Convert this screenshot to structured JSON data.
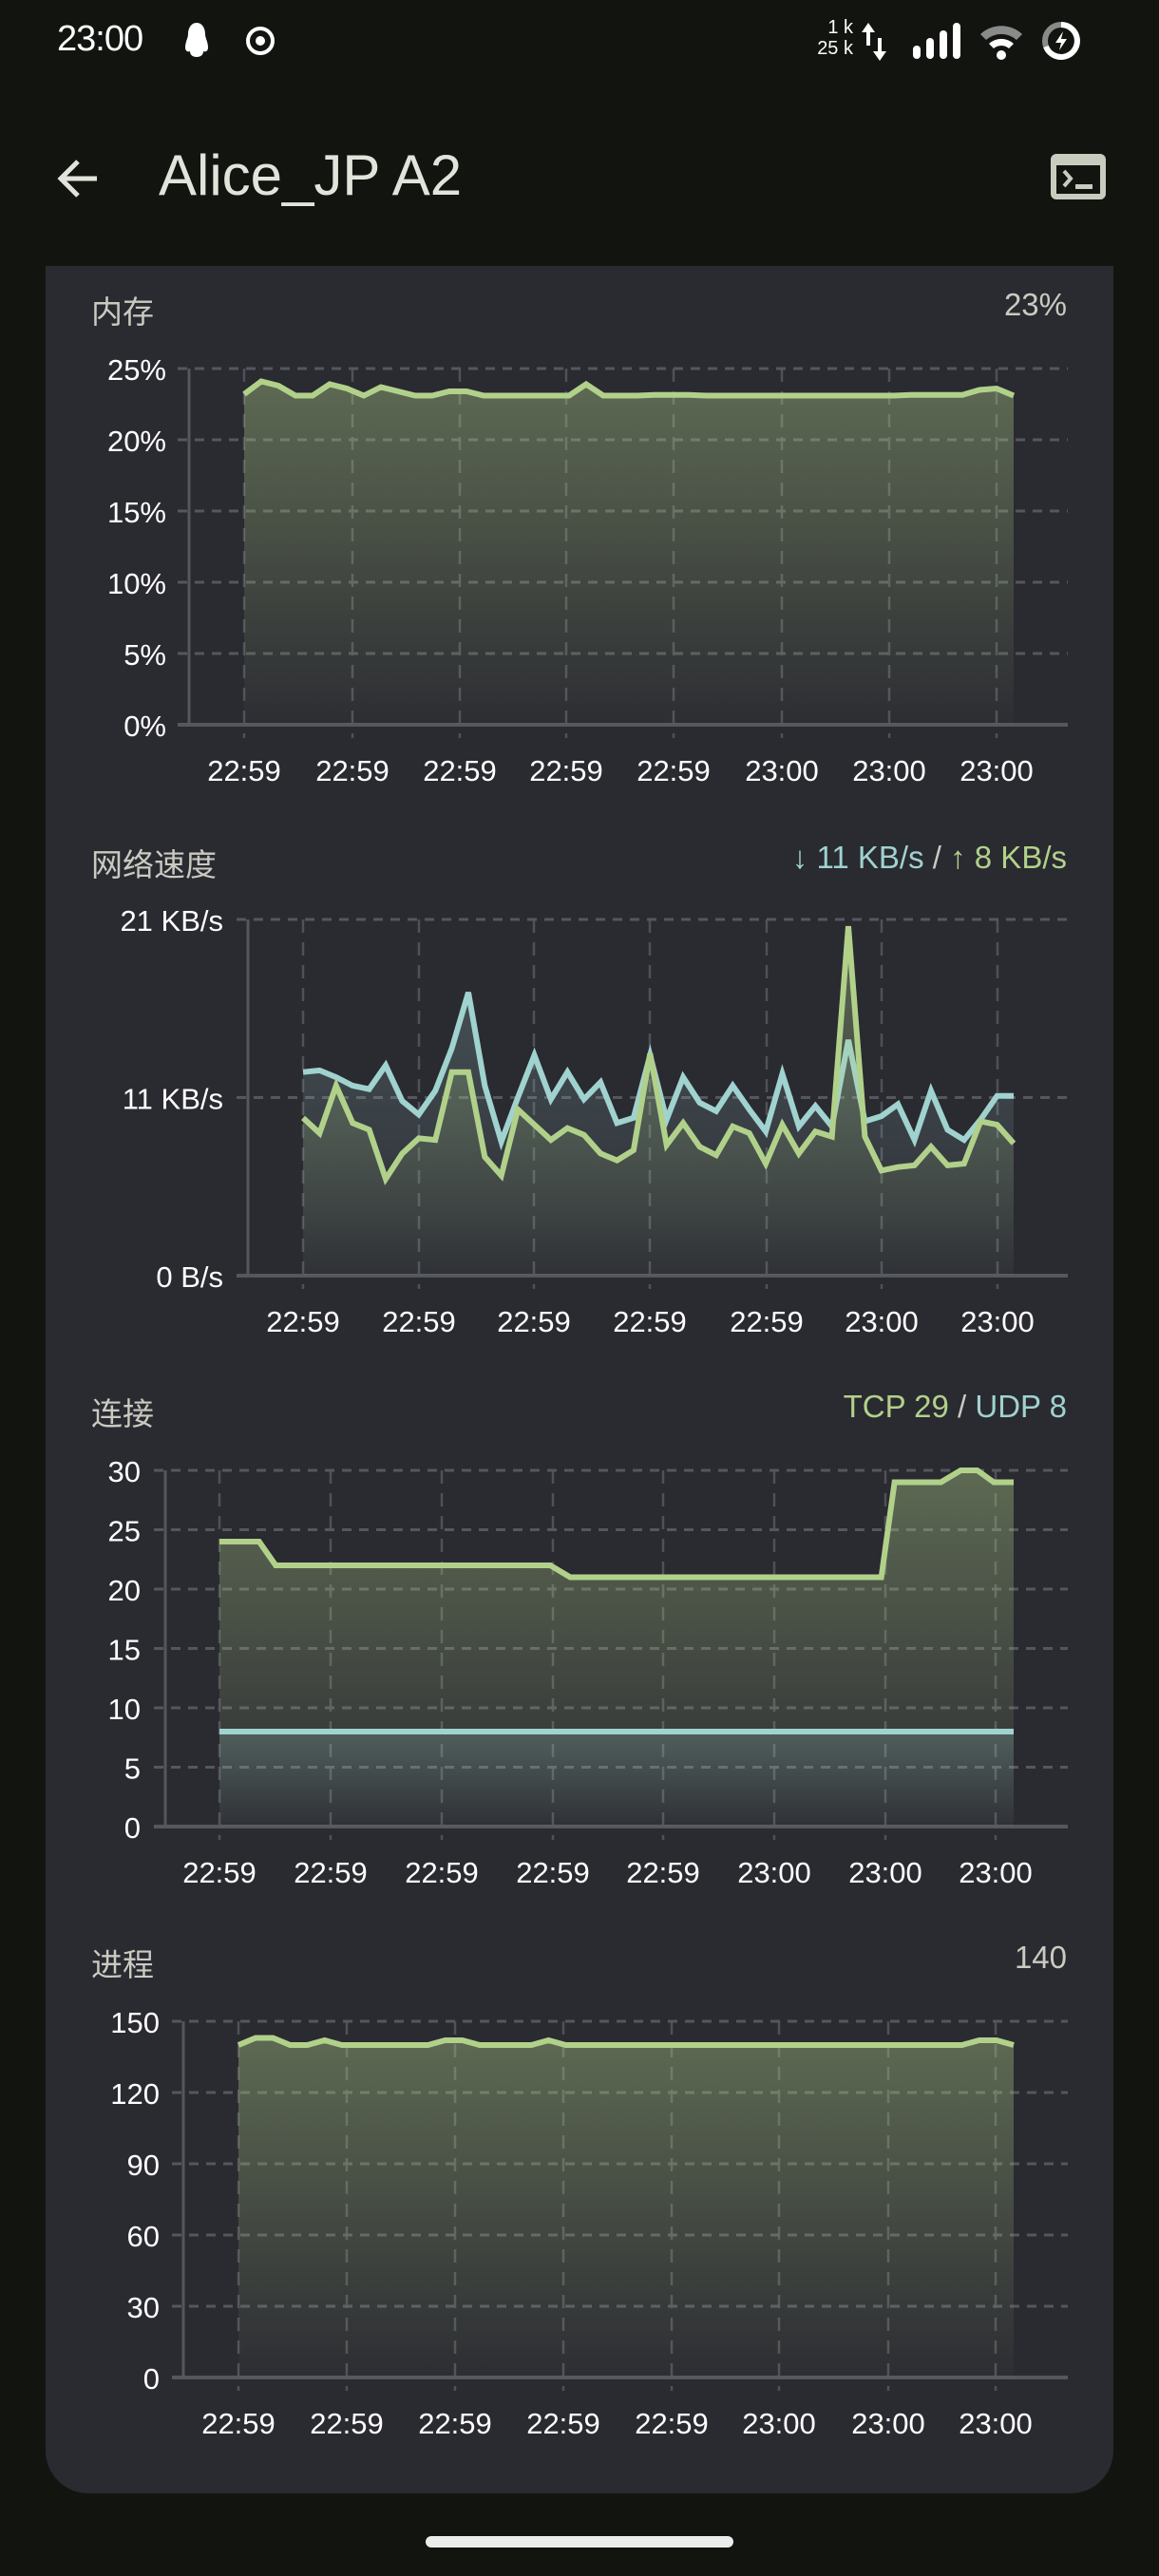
{
  "status_bar": {
    "time": "23:00",
    "notification_icons": [
      "qq-penguin-icon",
      "record-circle-icon"
    ],
    "net_speed_up": "1 k",
    "net_speed_down": "25 k",
    "system_icons": [
      "data-arrows-icon",
      "signal-icon",
      "wifi-icon",
      "battery-charging-icon"
    ]
  },
  "app_bar": {
    "title": "Alice_JP A2",
    "back_icon": "arrow-left-icon",
    "action_icon": "terminal-icon"
  },
  "colors": {
    "background": "#121410",
    "card": "#2a2a31",
    "green": "#b1d18a",
    "cyan": "#a0d2cf",
    "grid": "#54575b",
    "label": "#c9cbc1"
  },
  "sections": {
    "memory": {
      "title": "内存",
      "value": "23%"
    },
    "network": {
      "title": "网络速度",
      "down_arrow": "↓",
      "down_value": "11 KB/s",
      "separator": " / ",
      "up_arrow": "↑",
      "up_value": "8 KB/s"
    },
    "connections": {
      "title": "连接",
      "tcp_label": "TCP 29",
      "separator": " / ",
      "udp_label": "UDP 8"
    },
    "processes": {
      "title": "进程",
      "value": "140"
    }
  },
  "chart_data": [
    {
      "type": "area",
      "title": "内存",
      "ylabel": "",
      "xlabel": "",
      "ylim": [
        0,
        25
      ],
      "yticks": [
        "0%",
        "5%",
        "10%",
        "15%",
        "20%",
        "25%"
      ],
      "ytick_values": [
        0,
        5,
        10,
        15,
        20,
        25
      ],
      "xticks": [
        "22:59",
        "22:59",
        "22:59",
        "22:59",
        "22:59",
        "23:00",
        "23:00",
        "23:00"
      ],
      "grid": true,
      "series": [
        {
          "name": "memory",
          "color": "#b1d18a",
          "values": [
            23.2,
            24.1,
            23.8,
            23.1,
            23.1,
            23.9,
            23.6,
            23.1,
            23.7,
            23.4,
            23.1,
            23.1,
            23.4,
            23.4,
            23.1,
            23.1,
            23.1,
            23.1,
            23.1,
            23.1,
            23.9,
            23.1,
            23.1,
            23.1,
            23.15,
            23.15,
            23.15,
            23.1,
            23.1,
            23.1,
            23.1,
            23.1,
            23.1,
            23.1,
            23.1,
            23.1,
            23.1,
            23.1,
            23.1,
            23.15,
            23.15,
            23.15,
            23.15,
            23.5,
            23.6,
            23.1
          ]
        }
      ]
    },
    {
      "type": "area",
      "title": "网络速度",
      "ylim": [
        0,
        21
      ],
      "yticks": [
        "0 B/s",
        "11 KB/s",
        "21 KB/s"
      ],
      "ytick_values": [
        0,
        10.5,
        21
      ],
      "xticks": [
        "22:59",
        "22:59",
        "22:59",
        "22:59",
        "22:59",
        "23:00",
        "23:00"
      ],
      "grid": true,
      "legend": {
        "position": "top-right"
      },
      "series": [
        {
          "name": "download",
          "color": "#a0d2cf",
          "values": [
            12,
            12.1,
            11.7,
            11.2,
            11.0,
            12.4,
            10.3,
            9.5,
            10.9,
            13.4,
            16.7,
            11.2,
            7.9,
            10.5,
            13.0,
            10.4,
            12.0,
            10.4,
            11.4,
            9.0,
            9.3,
            13.0,
            9.2,
            11.7,
            10.2,
            9.7,
            11.2,
            9.8,
            8.5,
            11.9,
            8.8,
            10.0,
            8.8,
            13.9,
            9.1,
            9.4,
            10.1,
            8.0,
            10.9,
            8.6,
            8.0,
            9.2,
            10.6,
            10.6
          ]
        },
        {
          "name": "upload",
          "color": "#b1d18a",
          "values": [
            9.3,
            8.4,
            11.2,
            9.0,
            8.6,
            5.7,
            7.2,
            8.1,
            8.0,
            12.0,
            12.0,
            7.0,
            5.9,
            9.8,
            8.9,
            8.0,
            8.7,
            8.3,
            7.2,
            6.8,
            7.4,
            13.1,
            7.7,
            9.0,
            7.6,
            7.1,
            8.8,
            8.4,
            6.6,
            8.9,
            7.2,
            8.5,
            8.2,
            20.6,
            8.2,
            6.2,
            6.4,
            6.5,
            7.6,
            6.5,
            6.6,
            9.1,
            8.9,
            7.8
          ]
        }
      ]
    },
    {
      "type": "area",
      "title": "连接",
      "ylim": [
        0,
        30
      ],
      "yticks": [
        "0",
        "5",
        "10",
        "15",
        "20",
        "25",
        "30"
      ],
      "ytick_values": [
        0,
        5,
        10,
        15,
        20,
        25,
        30
      ],
      "xticks": [
        "22:59",
        "22:59",
        "22:59",
        "22:59",
        "22:59",
        "23:00",
        "23:00",
        "23:00"
      ],
      "grid": true,
      "series": [
        {
          "name": "TCP",
          "color": "#b1d18a",
          "x_frac": [
            0,
            0.06,
            0.085,
            0.5,
            0.53,
            0.99,
            1.0,
            1.02,
            1.09,
            1.12,
            1.145,
            1.17,
            1.2
          ],
          "values": [
            24,
            24,
            22,
            22,
            21,
            21,
            21,
            29,
            29,
            30,
            30,
            29,
            29
          ]
        },
        {
          "name": "UDP",
          "color": "#a0d2cf",
          "values": [
            8,
            8,
            8,
            8,
            8,
            8,
            8,
            8,
            8,
            8
          ]
        }
      ]
    },
    {
      "type": "area",
      "title": "进程",
      "ylim": [
        0,
        150
      ],
      "yticks": [
        "0",
        "30",
        "60",
        "90",
        "120",
        "150"
      ],
      "ytick_values": [
        0,
        30,
        60,
        90,
        120,
        150
      ],
      "xticks": [
        "22:59",
        "22:59",
        "22:59",
        "22:59",
        "22:59",
        "23:00",
        "23:00",
        "23:00"
      ],
      "grid": true,
      "series": [
        {
          "name": "processes",
          "color": "#b1d18a",
          "values": [
            140,
            143,
            143,
            140,
            140,
            142,
            140,
            140,
            140,
            140,
            140,
            140,
            142,
            142,
            140,
            140,
            140,
            140,
            142,
            140,
            140,
            140,
            140,
            140,
            140,
            140,
            140,
            140,
            140,
            140,
            140,
            140,
            140,
            140,
            140,
            140,
            140,
            140,
            140,
            140,
            140,
            140,
            140,
            142,
            142,
            140
          ]
        }
      ]
    }
  ]
}
